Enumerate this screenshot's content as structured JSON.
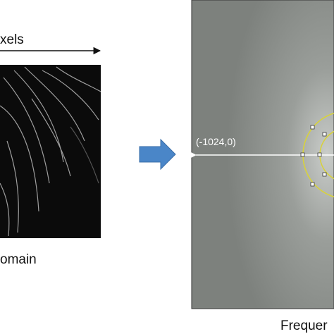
{
  "labels": {
    "top_axis": "xels",
    "left_caption": "omain",
    "coordinate": "(-1024,0)",
    "right_caption": "Frequer"
  }
}
